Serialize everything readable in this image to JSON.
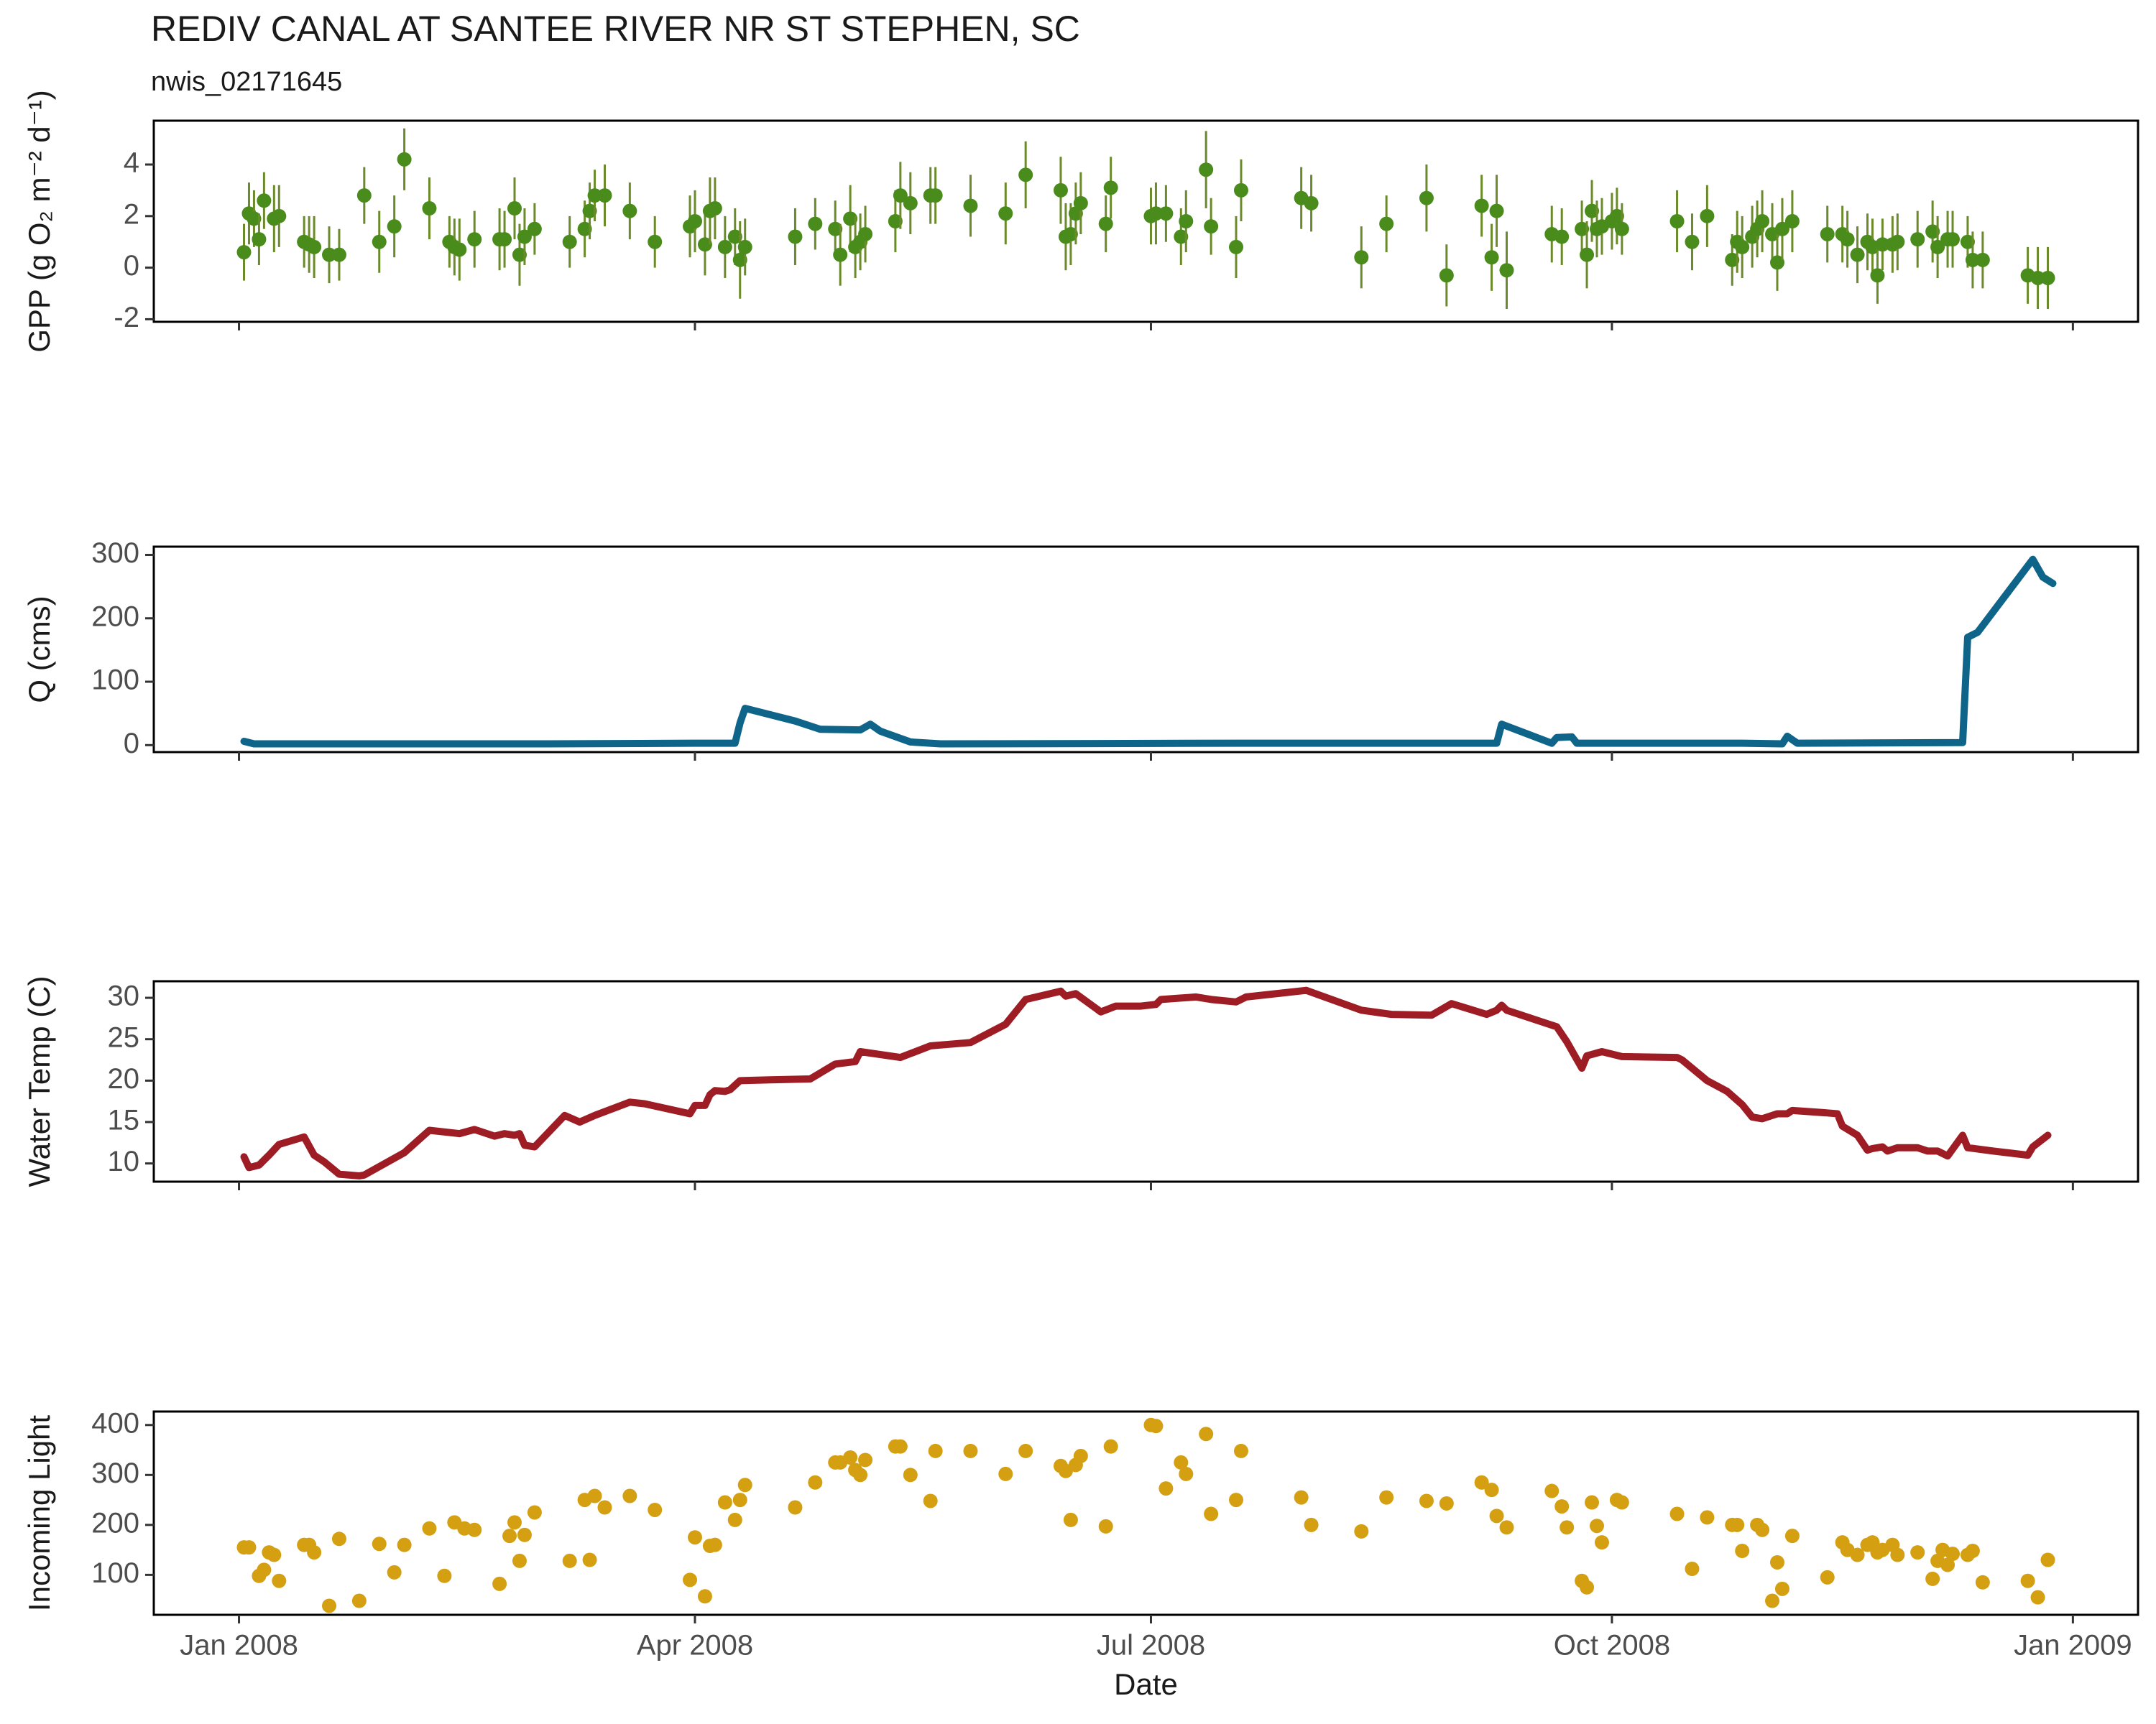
{
  "chart_data": [
    {
      "type": "scatter",
      "title": "REDIV CANAL AT SANTEE RIVER NR ST STEPHEN, SC",
      "subtitle": "nwis_02171645",
      "ylabel": "GPP (g  O₂ m⁻² d⁻¹)",
      "color": "#4a8c1c",
      "error_color": "#6b8a2a",
      "x": [
        1,
        2,
        3,
        4,
        5,
        7,
        8,
        13,
        14,
        15,
        18,
        20,
        25,
        28,
        31,
        33,
        38,
        42,
        43,
        44,
        47,
        52,
        53,
        55,
        56,
        57,
        59,
        66,
        69,
        70,
        71,
        73,
        78,
        83,
        90,
        91,
        93,
        94,
        95,
        97,
        99,
        100,
        101,
        111,
        115,
        119,
        120,
        122,
        123,
        124,
        125,
        131,
        132,
        134,
        138,
        139,
        146,
        153,
        157,
        164,
        165,
        166,
        167,
        168,
        173,
        174,
        182,
        183,
        185,
        188,
        189,
        193,
        194,
        199,
        200,
        212,
        214,
        224,
        229,
        237,
        241,
        248,
        250,
        251,
        253,
        262,
        264,
        268,
        269,
        270,
        271,
        272,
        274,
        275,
        276,
        287,
        290,
        293,
        298,
        299,
        300,
        302,
        303,
        304,
        306,
        307,
        308,
        310,
        317,
        320,
        321,
        323,
        325,
        326,
        327,
        328,
        330,
        331,
        335,
        338,
        339,
        341,
        342,
        345,
        346,
        348,
        357,
        359,
        361
      ],
      "values": [
        0.6,
        2.1,
        1.9,
        1.1,
        2.6,
        1.9,
        2.0,
        1.0,
        0.9,
        0.8,
        0.5,
        0.5,
        2.8,
        1.0,
        1.6,
        4.2,
        2.3,
        1.0,
        0.8,
        0.7,
        1.1,
        1.1,
        1.1,
        2.3,
        0.5,
        1.2,
        1.5,
        1.0,
        1.5,
        2.2,
        2.8,
        2.8,
        2.2,
        1.0,
        1.6,
        1.8,
        0.9,
        2.2,
        2.3,
        0.8,
        1.2,
        0.3,
        0.8,
        1.2,
        1.7,
        1.5,
        0.5,
        1.9,
        0.8,
        1.0,
        1.3,
        1.8,
        2.8,
        2.5,
        2.8,
        2.8,
        2.4,
        2.1,
        3.6,
        3.0,
        1.2,
        1.3,
        2.1,
        2.5,
        1.7,
        3.1,
        2.0,
        2.1,
        2.1,
        1.2,
        1.8,
        3.8,
        1.6,
        0.8,
        3.0,
        2.7,
        2.5,
        0.4,
        1.7,
        2.7,
        -0.3,
        2.4,
        0.4,
        2.2,
        -0.1,
        1.3,
        1.2,
        1.5,
        0.5,
        2.2,
        1.5,
        1.6,
        1.8,
        2.0,
        1.5,
        1.8,
        1.0,
        2.0,
        0.3,
        1.0,
        0.8,
        1.2,
        1.5,
        1.8,
        1.3,
        0.2,
        1.5,
        1.8,
        1.3,
        1.3,
        1.1,
        0.5,
        1.0,
        0.8,
        -0.3,
        0.9,
        0.9,
        1.0,
        1.1,
        1.4,
        0.8,
        1.1,
        1.1,
        1.0,
        0.3,
        0.3,
        -0.3,
        -0.4,
        -0.4
      ],
      "errors": [
        1.1,
        1.2,
        1.1,
        1.0,
        1.1,
        1.3,
        1.2,
        1.0,
        1.1,
        1.2,
        1.1,
        1.0,
        1.1,
        1.2,
        1.2,
        1.2,
        1.2,
        1.0,
        1.1,
        1.2,
        1.1,
        1.2,
        1.1,
        1.2,
        1.2,
        1.1,
        1.0,
        1.0,
        1.1,
        1.1,
        1.0,
        1.2,
        1.1,
        1.0,
        1.2,
        1.2,
        1.2,
        1.3,
        1.2,
        1.2,
        1.1,
        1.5,
        1.1,
        1.1,
        1.0,
        1.1,
        1.2,
        1.3,
        1.2,
        1.1,
        1.1,
        1.2,
        1.3,
        1.2,
        1.1,
        1.1,
        1.2,
        1.2,
        1.3,
        1.3,
        1.3,
        1.2,
        1.2,
        1.2,
        1.1,
        1.2,
        1.1,
        1.2,
        1.1,
        1.1,
        1.2,
        1.5,
        1.1,
        1.2,
        1.2,
        1.2,
        1.1,
        1.2,
        1.1,
        1.3,
        1.2,
        1.2,
        1.3,
        1.4,
        1.5,
        1.1,
        1.1,
        1.1,
        1.3,
        1.2,
        1.1,
        1.1,
        1.1,
        1.1,
        1.0,
        1.2,
        1.1,
        1.2,
        1.0,
        1.2,
        1.2,
        1.2,
        1.1,
        1.2,
        1.2,
        1.1,
        1.2,
        1.2,
        1.1,
        1.1,
        1.1,
        1.1,
        1.1,
        1.1,
        1.1,
        1.0,
        1.1,
        1.1,
        1.1,
        1.2,
        1.2,
        1.1,
        1.1,
        1.0,
        1.1,
        1.1,
        1.1,
        1.2,
        1.2
      ],
      "xlim": [
        -17,
        379
      ],
      "xticks": [
        0,
        91,
        182,
        274,
        366
      ],
      "ylim": [
        -2.1,
        5.7
      ],
      "yticks": [
        -2,
        0,
        2,
        4
      ]
    },
    {
      "type": "line",
      "ylabel": "Q (cms)",
      "color": "#0e6589",
      "x": [
        1,
        3,
        30,
        60,
        91,
        99,
        100,
        101,
        111,
        116,
        124,
        126,
        128,
        134,
        140,
        200,
        251,
        252,
        262,
        263,
        266,
        267,
        300,
        308,
        309,
        311,
        344,
        345,
        347,
        358,
        360,
        362
      ],
      "values": [
        6,
        2,
        2,
        2,
        3,
        3,
        35,
        58,
        38,
        25,
        24,
        33,
        22,
        5,
        2,
        3,
        3,
        33,
        3,
        12,
        13,
        3,
        3,
        2,
        14,
        3,
        4,
        170,
        178,
        293,
        265,
        255
      ],
      "xlim": [
        -17,
        379
      ],
      "xticks": [
        0,
        91,
        182,
        274,
        366
      ],
      "ylim": [
        -11,
        313
      ],
      "yticks": [
        0,
        100,
        200,
        300
      ]
    },
    {
      "type": "line",
      "ylabel": "Water Temp (C)",
      "color": "#9e1c24",
      "x": [
        1,
        2,
        4,
        6,
        8,
        13,
        15,
        17,
        20,
        24,
        25,
        33,
        38,
        44,
        47,
        51,
        53,
        55,
        56,
        57,
        59,
        65,
        68,
        71,
        78,
        81,
        90,
        91,
        93,
        94,
        95,
        97,
        98,
        100,
        106,
        114,
        119,
        123,
        124,
        132,
        138,
        146,
        153,
        157,
        164,
        165,
        167,
        172,
        175,
        180,
        183,
        184,
        191,
        194,
        199,
        201,
        213,
        224,
        230,
        238,
        242,
        249,
        251,
        252,
        253,
        263,
        265,
        268,
        269,
        272,
        276,
        287,
        288,
        293,
        297,
        300,
        302,
        304,
        307,
        309,
        310,
        317,
        319,
        320,
        323,
        325,
        326,
        328,
        329,
        331,
        335,
        337,
        339,
        341,
        344,
        345,
        350,
        357,
        358,
        361
      ],
      "values": [
        10.8,
        9.5,
        9.8,
        11.0,
        12.3,
        13.2,
        11.0,
        10.2,
        8.7,
        8.5,
        8.6,
        11.3,
        14.0,
        13.6,
        14.1,
        13.3,
        13.6,
        13.4,
        13.6,
        12.2,
        12.0,
        15.8,
        15.0,
        15.8,
        17.4,
        17.2,
        16.0,
        17.0,
        17.0,
        18.3,
        18.8,
        18.7,
        18.9,
        20.0,
        20.1,
        20.2,
        22.0,
        22.3,
        23.5,
        22.8,
        24.2,
        24.6,
        26.8,
        29.8,
        30.8,
        30.2,
        30.5,
        28.3,
        29.0,
        29.0,
        29.2,
        29.8,
        30.1,
        29.8,
        29.5,
        30.1,
        30.9,
        28.5,
        28.0,
        27.9,
        29.3,
        28.0,
        28.5,
        29.1,
        28.5,
        26.5,
        24.7,
        21.5,
        23.0,
        23.5,
        22.9,
        22.8,
        22.5,
        20.0,
        18.7,
        17.1,
        15.6,
        15.4,
        16.0,
        16.0,
        16.4,
        16.1,
        16.0,
        14.5,
        13.4,
        11.6,
        11.8,
        12.0,
        11.5,
        11.9,
        11.9,
        11.5,
        11.5,
        10.9,
        13.4,
        11.9,
        11.5,
        11.0,
        12.0,
        13.4
      ],
      "xlim": [
        -17,
        379
      ],
      "xticks": [
        0,
        91,
        182,
        274,
        366
      ],
      "ylim": [
        7.8,
        32
      ],
      "yticks": [
        10,
        15,
        20,
        25,
        30
      ]
    },
    {
      "type": "scatter",
      "ylabel": "Incoming Light",
      "xlabel": "Date",
      "color": "#d4a012",
      "x": [
        1,
        2,
        4,
        5,
        6,
        7,
        8,
        13,
        14,
        15,
        18,
        20,
        24,
        28,
        31,
        33,
        38,
        41,
        43,
        45,
        47,
        52,
        54,
        55,
        56,
        57,
        59,
        66,
        69,
        70,
        71,
        73,
        78,
        83,
        90,
        91,
        93,
        94,
        95,
        97,
        99,
        100,
        101,
        111,
        115,
        119,
        120,
        122,
        123,
        124,
        125,
        131,
        132,
        134,
        138,
        139,
        146,
        153,
        157,
        164,
        165,
        166,
        167,
        168,
        173,
        174,
        182,
        183,
        185,
        188,
        189,
        193,
        194,
        199,
        200,
        212,
        214,
        224,
        229,
        237,
        241,
        248,
        250,
        251,
        253,
        262,
        264,
        265,
        268,
        269,
        270,
        271,
        272,
        275,
        276,
        287,
        290,
        293,
        298,
        299,
        300,
        303,
        304,
        306,
        307,
        308,
        310,
        317,
        320,
        321,
        323,
        325,
        326,
        327,
        328,
        330,
        331,
        335,
        338,
        339,
        340,
        341,
        342,
        345,
        346,
        348,
        357,
        359,
        361
      ],
      "values": [
        155,
        155,
        98,
        110,
        145,
        140,
        88,
        160,
        160,
        145,
        38,
        172,
        48,
        162,
        105,
        160,
        193,
        98,
        205,
        193,
        190,
        82,
        178,
        205,
        128,
        180,
        225,
        128,
        250,
        130,
        258,
        235,
        258,
        230,
        90,
        175,
        57,
        158,
        160,
        245,
        210,
        250,
        280,
        235,
        285,
        325,
        325,
        335,
        310,
        300,
        330,
        357,
        357,
        300,
        248,
        348,
        348,
        302,
        348,
        318,
        308,
        210,
        320,
        338,
        197,
        357,
        400,
        398,
        273,
        325,
        302,
        382,
        222,
        250,
        348,
        255,
        200,
        187,
        255,
        248,
        243,
        285,
        270,
        218,
        195,
        268,
        237,
        195,
        88,
        75,
        245,
        198,
        165,
        250,
        245,
        222,
        112,
        215,
        200,
        200,
        148,
        200,
        190,
        48,
        125,
        72,
        178,
        95,
        165,
        150,
        140,
        160,
        165,
        145,
        150,
        160,
        140,
        145,
        92,
        128,
        150,
        120,
        142,
        140,
        148,
        85,
        88,
        55,
        130
      ],
      "xlim": [
        -17,
        379
      ],
      "xticks": [
        {
          "value": 0,
          "label": "Jan 2008"
        },
        {
          "value": 91,
          "label": "Apr 2008"
        },
        {
          "value": 182,
          "label": "Jul 2008"
        },
        {
          "value": 274,
          "label": "Oct 2008"
        },
        {
          "value": 366,
          "label": "Jan 2009"
        }
      ],
      "ylim": [
        20,
        427
      ],
      "yticks": [
        100,
        200,
        300,
        400
      ]
    }
  ]
}
